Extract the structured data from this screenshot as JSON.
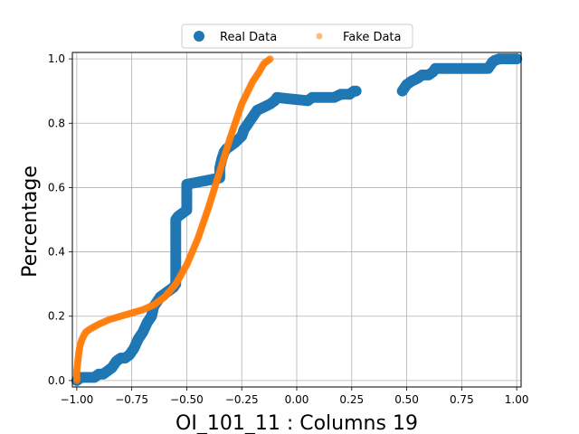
{
  "chart_data": {
    "type": "scatter",
    "title": "",
    "xlabel": "OI_101_11 : Columns 19",
    "ylabel": "Percentage",
    "xlim": [
      -1.02,
      1.02
    ],
    "ylim": [
      -0.02,
      1.02
    ],
    "xticks": [
      -1.0,
      -0.75,
      -0.5,
      -0.25,
      0.0,
      0.25,
      0.5,
      0.75,
      1.0
    ],
    "xtick_labels": [
      "−1.00",
      "−0.75",
      "−0.50",
      "−0.25",
      "0.00",
      "0.25",
      "0.50",
      "0.75",
      "1.00"
    ],
    "yticks": [
      0.0,
      0.2,
      0.4,
      0.6,
      0.8,
      1.0
    ],
    "ytick_labels": [
      "0.0",
      "0.2",
      "0.4",
      "0.6",
      "0.8",
      "1.0"
    ],
    "grid": true,
    "legend": {
      "placement": "top-center",
      "columns": 2
    },
    "series": [
      {
        "name": "Real Data",
        "color": "#1f77b4",
        "marker": "large-circle",
        "points": [
          [
            -1.0,
            0.0
          ],
          [
            -0.98,
            0.01
          ],
          [
            -0.95,
            0.01
          ],
          [
            -0.92,
            0.01
          ],
          [
            -0.9,
            0.02
          ],
          [
            -0.88,
            0.02
          ],
          [
            -0.86,
            0.03
          ],
          [
            -0.84,
            0.04
          ],
          [
            -0.82,
            0.06
          ],
          [
            -0.8,
            0.07
          ],
          [
            -0.78,
            0.07
          ],
          [
            -0.76,
            0.08
          ],
          [
            -0.74,
            0.1
          ],
          [
            -0.72,
            0.13
          ],
          [
            -0.7,
            0.15
          ],
          [
            -0.68,
            0.18
          ],
          [
            -0.66,
            0.2
          ],
          [
            -0.65,
            0.23
          ],
          [
            -0.64,
            0.24
          ],
          [
            -0.62,
            0.26
          ],
          [
            -0.6,
            0.27
          ],
          [
            -0.58,
            0.28
          ],
          [
            -0.56,
            0.29
          ],
          [
            -0.55,
            0.3
          ],
          [
            -0.55,
            0.34
          ],
          [
            -0.55,
            0.38
          ],
          [
            -0.55,
            0.42
          ],
          [
            -0.55,
            0.46
          ],
          [
            -0.55,
            0.5
          ],
          [
            -0.54,
            0.51
          ],
          [
            -0.52,
            0.52
          ],
          [
            -0.5,
            0.53
          ],
          [
            -0.5,
            0.56
          ],
          [
            -0.5,
            0.59
          ],
          [
            -0.5,
            0.61
          ],
          [
            -0.35,
            0.63
          ],
          [
            -0.35,
            0.66
          ],
          [
            -0.34,
            0.69
          ],
          [
            -0.33,
            0.71
          ],
          [
            -0.32,
            0.72
          ],
          [
            -0.3,
            0.73
          ],
          [
            -0.28,
            0.74
          ],
          [
            -0.25,
            0.76
          ],
          [
            -0.24,
            0.78
          ],
          [
            -0.22,
            0.8
          ],
          [
            -0.2,
            0.82
          ],
          [
            -0.18,
            0.84
          ],
          [
            -0.15,
            0.85
          ],
          [
            -0.12,
            0.86
          ],
          [
            -0.1,
            0.87
          ],
          [
            -0.09,
            0.88
          ],
          [
            0.05,
            0.87
          ],
          [
            0.07,
            0.88
          ],
          [
            0.08,
            0.88
          ],
          [
            0.17,
            0.88
          ],
          [
            0.2,
            0.89
          ],
          [
            0.24,
            0.89
          ],
          [
            0.26,
            0.9
          ],
          [
            0.28,
            0.9
          ],
          [
            0.48,
            0.9
          ],
          [
            0.49,
            0.91
          ],
          [
            0.5,
            0.92
          ],
          [
            0.52,
            0.93
          ],
          [
            0.55,
            0.94
          ],
          [
            0.57,
            0.95
          ],
          [
            0.6,
            0.95
          ],
          [
            0.62,
            0.96
          ],
          [
            0.63,
            0.97
          ],
          [
            0.75,
            0.97
          ],
          [
            0.87,
            0.97
          ],
          [
            0.88,
            0.98
          ],
          [
            0.89,
            0.99
          ],
          [
            0.9,
            0.995
          ],
          [
            0.92,
            1.0
          ],
          [
            0.95,
            1.0
          ],
          [
            0.98,
            1.0
          ],
          [
            1.0,
            1.0
          ]
        ]
      },
      {
        "name": "Fake Data",
        "color": "#ff7f0e",
        "marker": "small-circle",
        "points": [
          [
            -1.0,
            0.0
          ],
          [
            -1.0,
            0.03
          ],
          [
            -0.995,
            0.06
          ],
          [
            -0.99,
            0.09
          ],
          [
            -0.985,
            0.11
          ],
          [
            -0.975,
            0.13
          ],
          [
            -0.96,
            0.15
          ],
          [
            -0.94,
            0.16
          ],
          [
            -0.9,
            0.175
          ],
          [
            -0.85,
            0.19
          ],
          [
            -0.8,
            0.2
          ],
          [
            -0.75,
            0.21
          ],
          [
            -0.7,
            0.22
          ],
          [
            -0.65,
            0.235
          ],
          [
            -0.6,
            0.26
          ],
          [
            -0.55,
            0.3
          ],
          [
            -0.5,
            0.36
          ],
          [
            -0.45,
            0.44
          ],
          [
            -0.4,
            0.54
          ],
          [
            -0.35,
            0.65
          ],
          [
            -0.3,
            0.76
          ],
          [
            -0.25,
            0.86
          ],
          [
            -0.2,
            0.93
          ],
          [
            -0.17,
            0.96
          ],
          [
            -0.15,
            0.985
          ],
          [
            -0.12,
            1.0
          ]
        ]
      }
    ]
  }
}
